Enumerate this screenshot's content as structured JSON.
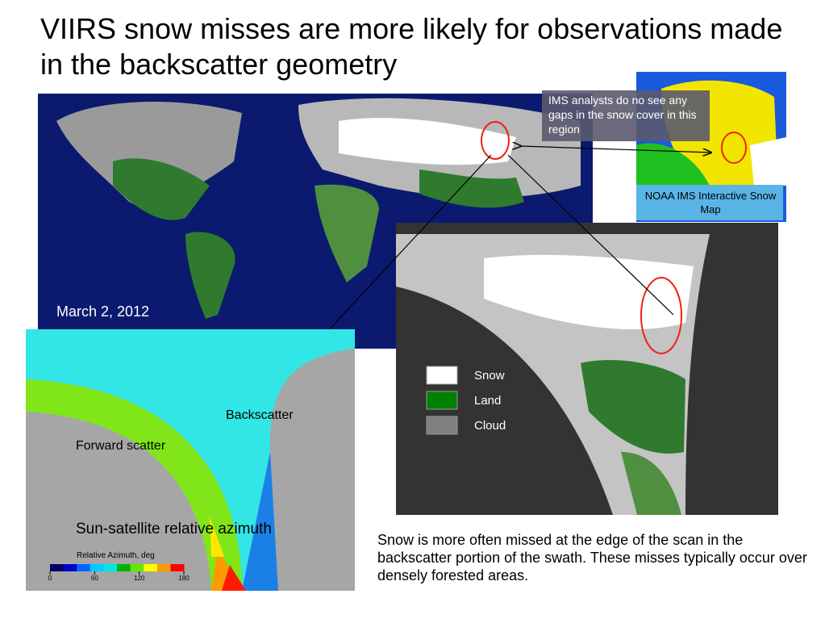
{
  "title": "VIIRS snow misses are more likely for observations made in the backscatter geometry",
  "callout": "IMS analysts do no see any gaps in the snow cover in this region",
  "ims_map_label": "NOAA IMS Interactive Snow Map",
  "date": "March 2, 2012",
  "legend": [
    {
      "label": "Snow",
      "color": "#ffffff"
    },
    {
      "label": "Land",
      "color": "#008000"
    },
    {
      "label": "Cloud",
      "color": "#808080"
    }
  ],
  "azimuth_panel": {
    "backscatter_label": "Backscatter",
    "forward_label": "Forward scatter",
    "caption": "Sun-satellite relative azimuth",
    "colorbar": {
      "title": "Relative Azimuth, deg",
      "ticks": [
        0,
        60,
        120,
        180
      ],
      "colors": [
        "#000066",
        "#0000cc",
        "#0066ff",
        "#00ccff",
        "#00e6e6",
        "#00b300",
        "#66e600",
        "#ffff00",
        "#ff9900",
        "#ff0000"
      ]
    }
  },
  "note": "Snow is more often missed at the edge of the scan in the backscatter portion of the swath. These misses typically occur over densely forested areas."
}
